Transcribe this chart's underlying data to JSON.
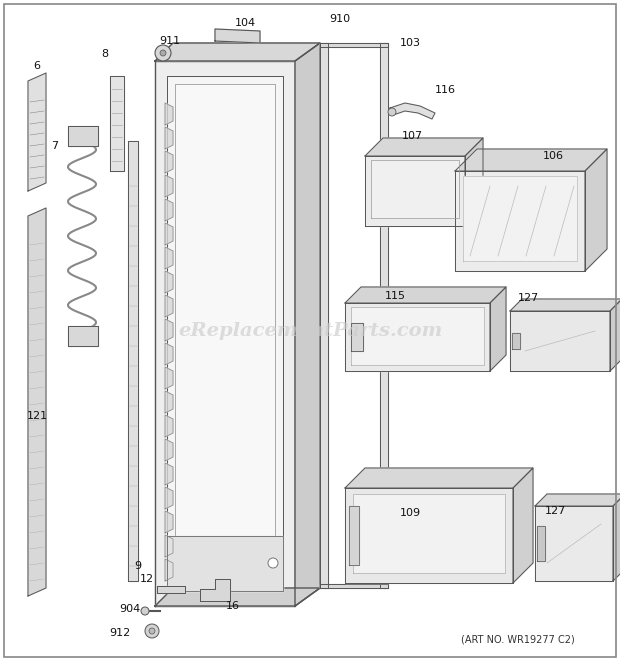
{
  "bg_color": "#ffffff",
  "watermark": "eReplacementParts.com",
  "art_no": "(ART NO. WR19277 C2)",
  "fig_width": 6.2,
  "fig_height": 6.61,
  "dpi": 100,
  "line_color": "#555555",
  "fill_light": "#e8e8e8",
  "fill_mid": "#d0d0d0",
  "fill_dark": "#b8b8b8"
}
